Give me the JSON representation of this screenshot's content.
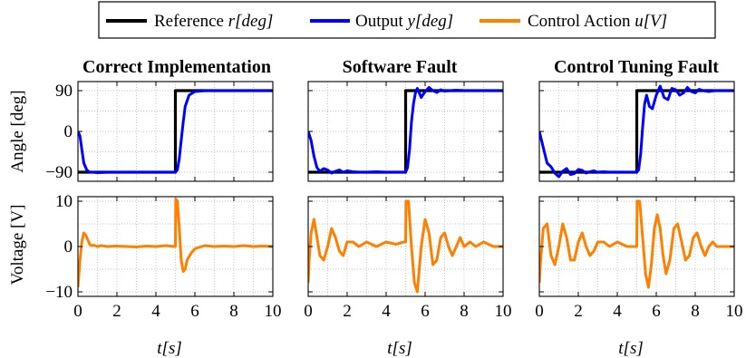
{
  "legend": {
    "items": [
      {
        "pre": "Reference ",
        "sym": "r",
        "unit": "[deg]",
        "color": "#000000"
      },
      {
        "pre": "Output ",
        "sym": "y",
        "unit": "[deg]",
        "color": "#0000ff"
      },
      {
        "pre": "Control Action ",
        "sym": "u",
        "unit": "[V]",
        "color": "#ff8000"
      }
    ]
  },
  "chart_data": [
    {
      "type": "line",
      "title": "Correct Implementation",
      "xlabel": "t[s]",
      "xlim": [
        0,
        10
      ],
      "xticks": [
        "0",
        "2",
        "4",
        "6",
        "8",
        "10"
      ],
      "angle": {
        "ylabel": "Angle [deg]",
        "ylim": [
          -110,
          110
        ],
        "yticks": [
          "90",
          "0",
          "−90"
        ],
        "reference": {
          "x": [
            0,
            5,
            5,
            10
          ],
          "y": [
            -90,
            -90,
            90,
            90
          ]
        },
        "output": {
          "x": [
            0,
            0.1,
            0.2,
            0.3,
            0.45,
            0.6,
            0.8,
            1.0,
            1.5,
            2,
            3,
            4,
            4.9,
            5.0,
            5.1,
            5.2,
            5.3,
            5.4,
            5.5,
            5.7,
            6.0,
            6.5,
            7,
            8,
            9,
            10
          ],
          "y": [
            0,
            -10,
            -40,
            -70,
            -85,
            -90,
            -90,
            -91,
            -90,
            -90,
            -90,
            -90,
            -90,
            -90,
            -85,
            -60,
            -20,
            20,
            55,
            80,
            88,
            90,
            90,
            90,
            90,
            90
          ]
        }
      },
      "voltage": {
        "ylabel": "Voltage [V]",
        "ylim": [
          -11,
          11
        ],
        "yticks": [
          "10",
          "0",
          "−10"
        ],
        "control": {
          "x": [
            0,
            0.05,
            0.1,
            0.2,
            0.3,
            0.4,
            0.5,
            0.6,
            0.7,
            0.8,
            1.0,
            1.2,
            1.5,
            2,
            2.5,
            3,
            3.5,
            4,
            4.5,
            4.9,
            5.0,
            5.02,
            5.1,
            5.2,
            5.3,
            5.4,
            5.5,
            5.6,
            5.8,
            6.0,
            6.2,
            6.5,
            7,
            7.5,
            8,
            8.5,
            9,
            9.5,
            10
          ],
          "y": [
            -9,
            -6,
            -3,
            1,
            3,
            2.5,
            1.5,
            0.5,
            0.2,
            0.3,
            0,
            0.2,
            0,
            0.1,
            0,
            -0.1,
            0.1,
            0,
            0.2,
            0,
            0,
            10.5,
            10,
            4,
            -3,
            -5.5,
            -5,
            -3,
            -1.5,
            -0.5,
            -0.2,
            0.2,
            0,
            0.1,
            0,
            0.2,
            0,
            0.1,
            0
          ]
        }
      }
    },
    {
      "type": "line",
      "title": "Software Fault",
      "xlabel": "t[s]",
      "xlim": [
        0,
        10
      ],
      "xticks": [
        "0",
        "2",
        "4",
        "6",
        "8",
        "10"
      ],
      "angle": {
        "ylabel": "",
        "ylim": [
          -110,
          110
        ],
        "yticks": [],
        "reference": {
          "x": [
            0,
            5,
            5,
            10
          ],
          "y": [
            -90,
            -90,
            90,
            90
          ]
        },
        "output": {
          "x": [
            0,
            0.15,
            0.3,
            0.45,
            0.6,
            0.8,
            1.0,
            1.2,
            1.4,
            1.6,
            1.8,
            2.0,
            2.3,
            2.6,
            3,
            3.5,
            4,
            4.5,
            5.0,
            5.1,
            5.2,
            5.3,
            5.4,
            5.5,
            5.6,
            5.8,
            6.0,
            6.2,
            6.4,
            6.6,
            6.8,
            7.0,
            7.3,
            7.6,
            8,
            8.5,
            9,
            10
          ],
          "y": [
            0,
            -20,
            -55,
            -80,
            -88,
            -82,
            -85,
            -92,
            -88,
            -85,
            -90,
            -87,
            -89,
            -90,
            -90,
            -89,
            -90,
            -90,
            -90,
            -80,
            -40,
            20,
            60,
            85,
            95,
            75,
            88,
            97,
            90,
            86,
            92,
            89,
            90,
            91,
            90,
            90,
            90,
            90
          ]
        }
      },
      "voltage": {
        "ylabel": "",
        "ylim": [
          -11,
          11
        ],
        "yticks": [],
        "control": {
          "x": [
            0,
            0.05,
            0.15,
            0.3,
            0.45,
            0.6,
            0.8,
            1.0,
            1.2,
            1.4,
            1.6,
            1.8,
            2.0,
            2.3,
            2.6,
            3.0,
            3.5,
            4.0,
            4.5,
            4.9,
            5.0,
            5.02,
            5.15,
            5.3,
            5.45,
            5.6,
            5.8,
            6.0,
            6.2,
            6.4,
            6.6,
            6.8,
            7.0,
            7.2,
            7.4,
            7.6,
            7.8,
            8.0,
            8.3,
            8.6,
            9,
            9.5,
            10
          ],
          "y": [
            -8,
            -3,
            3,
            6,
            2,
            -2,
            -3,
            0,
            4,
            2,
            -1,
            -2,
            1,
            1,
            0,
            1,
            0,
            1,
            0.5,
            1,
            1,
            10,
            10,
            0,
            -8,
            -10,
            0,
            6,
            3,
            -4,
            -3,
            2,
            3,
            0,
            -2,
            0,
            2,
            0,
            1,
            0,
            1,
            0,
            0
          ]
        }
      }
    },
    {
      "type": "line",
      "title": "Control Tuning Fault",
      "xlabel": "t[s]",
      "xlim": [
        0,
        10
      ],
      "xticks": [
        "0",
        "2",
        "4",
        "6",
        "8",
        "10"
      ],
      "angle": {
        "ylabel": "",
        "ylim": [
          -110,
          110
        ],
        "yticks": [],
        "reference": {
          "x": [
            0,
            5,
            5,
            10
          ],
          "y": [
            -90,
            -90,
            90,
            90
          ]
        },
        "output": {
          "x": [
            0,
            0.2,
            0.4,
            0.6,
            0.8,
            1.0,
            1.2,
            1.4,
            1.6,
            1.8,
            2.0,
            2.2,
            2.4,
            2.6,
            2.8,
            3.0,
            3.3,
            3.6,
            4.0,
            4.5,
            5.0,
            5.1,
            5.2,
            5.3,
            5.4,
            5.5,
            5.65,
            5.8,
            6.0,
            6.2,
            6.4,
            6.6,
            6.8,
            7.0,
            7.2,
            7.4,
            7.6,
            7.8,
            8.0,
            8.2,
            8.4,
            8.7,
            9.0,
            9.5,
            10
          ],
          "y": [
            0,
            -35,
            -70,
            -78,
            -92,
            -100,
            -88,
            -82,
            -95,
            -93,
            -84,
            -86,
            -92,
            -89,
            -87,
            -90,
            -89,
            -90,
            -90,
            -90,
            -90,
            -85,
            -50,
            10,
            60,
            80,
            55,
            50,
            80,
            100,
            75,
            70,
            95,
            92,
            80,
            85,
            97,
            88,
            85,
            93,
            90,
            88,
            90,
            90,
            90
          ]
        }
      },
      "voltage": {
        "ylabel": "",
        "ylim": [
          -11,
          11
        ],
        "yticks": [],
        "control": {
          "x": [
            0,
            0.05,
            0.2,
            0.4,
            0.6,
            0.8,
            1.0,
            1.2,
            1.4,
            1.6,
            1.8,
            2.0,
            2.2,
            2.4,
            2.6,
            2.8,
            3.0,
            3.3,
            3.6,
            4.0,
            4.5,
            4.9,
            5.0,
            5.02,
            5.15,
            5.3,
            5.45,
            5.6,
            5.75,
            5.9,
            6.05,
            6.2,
            6.35,
            6.5,
            6.7,
            6.9,
            7.1,
            7.3,
            7.5,
            7.7,
            7.9,
            8.1,
            8.3,
            8.5,
            8.7,
            8.9,
            9.1,
            9.4,
            9.7,
            10
          ],
          "y": [
            -8,
            -4,
            4,
            5,
            -2,
            -4,
            0,
            5,
            2,
            -3,
            -3,
            1,
            3,
            0,
            -2,
            -1,
            1,
            1,
            0,
            1,
            0,
            0,
            0,
            10,
            10,
            2,
            -6,
            -9,
            -4,
            4,
            7,
            4,
            -2,
            -6,
            -3,
            4,
            5,
            1,
            -3,
            -2,
            2,
            3,
            0,
            -2,
            0,
            1,
            0,
            0,
            0,
            0
          ]
        }
      }
    }
  ]
}
